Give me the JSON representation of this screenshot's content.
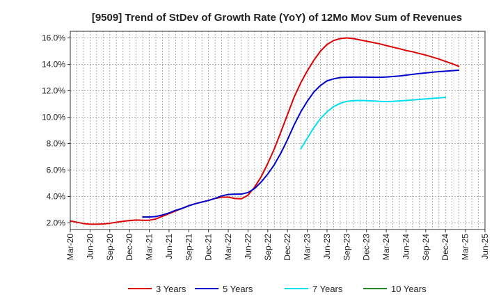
{
  "chart_data": {
    "type": "line",
    "title": "[9509]  Trend of StDev of Growth Rate (YoY) of 12Mo Mov Sum of Revenues",
    "xlabel": "",
    "ylabel": "",
    "x_categories": [
      "Mar-20",
      "Jun-20",
      "Sep-20",
      "Dec-20",
      "Mar-21",
      "Jun-21",
      "Sep-21",
      "Dec-21",
      "Mar-22",
      "Jun-22",
      "Sep-22",
      "Dec-22",
      "Mar-23",
      "Jun-23",
      "Sep-23",
      "Dec-23",
      "Mar-24",
      "Jun-24",
      "Sep-24",
      "Dec-24",
      "Mar-25",
      "Jun-25"
    ],
    "ylim": [
      1.5,
      16.5
    ],
    "yticks": [
      2.0,
      4.0,
      6.0,
      8.0,
      10.0,
      12.0,
      14.0,
      16.0
    ],
    "ytick_labels": [
      "2.0%",
      "4.0%",
      "6.0%",
      "8.0%",
      "10.0%",
      "12.0%",
      "14.0%",
      "16.0%"
    ],
    "grid": true,
    "legend_position": "bottom",
    "series": [
      {
        "name": "3 Years",
        "color": "#dd0000",
        "points": [
          [
            0,
            2.15
          ],
          [
            0.33,
            2.05
          ],
          [
            0.67,
            1.95
          ],
          [
            1,
            1.9
          ],
          [
            1.33,
            1.9
          ],
          [
            1.67,
            1.92
          ],
          [
            2,
            1.97
          ],
          [
            2.33,
            2.05
          ],
          [
            2.67,
            2.12
          ],
          [
            3,
            2.18
          ],
          [
            3.33,
            2.22
          ],
          [
            3.67,
            2.2
          ],
          [
            4,
            2.2
          ],
          [
            4.33,
            2.3
          ],
          [
            4.67,
            2.5
          ],
          [
            5,
            2.7
          ],
          [
            5.33,
            2.9
          ],
          [
            5.67,
            3.1
          ],
          [
            6,
            3.3
          ],
          [
            6.33,
            3.45
          ],
          [
            6.67,
            3.58
          ],
          [
            7,
            3.7
          ],
          [
            7.33,
            3.85
          ],
          [
            7.67,
            3.95
          ],
          [
            8,
            3.95
          ],
          [
            8.33,
            3.85
          ],
          [
            8.67,
            3.82
          ],
          [
            9,
            4.1
          ],
          [
            9.33,
            4.7
          ],
          [
            9.67,
            5.5
          ],
          [
            10,
            6.5
          ],
          [
            10.33,
            7.6
          ],
          [
            10.67,
            8.9
          ],
          [
            11,
            10.2
          ],
          [
            11.33,
            11.5
          ],
          [
            11.67,
            12.6
          ],
          [
            12,
            13.5
          ],
          [
            12.33,
            14.3
          ],
          [
            12.67,
            15.0
          ],
          [
            13,
            15.5
          ],
          [
            13.33,
            15.8
          ],
          [
            13.67,
            15.95
          ],
          [
            14,
            16.0
          ],
          [
            14.33,
            15.95
          ],
          [
            14.67,
            15.85
          ],
          [
            15,
            15.75
          ],
          [
            15.33,
            15.65
          ],
          [
            15.67,
            15.55
          ],
          [
            16,
            15.42
          ],
          [
            16.33,
            15.3
          ],
          [
            16.67,
            15.18
          ],
          [
            17,
            15.05
          ],
          [
            17.33,
            14.95
          ],
          [
            17.67,
            14.82
          ],
          [
            18,
            14.7
          ],
          [
            18.33,
            14.55
          ],
          [
            18.67,
            14.4
          ],
          [
            19,
            14.22
          ],
          [
            19.33,
            14.05
          ],
          [
            19.67,
            13.85
          ]
        ]
      },
      {
        "name": "5 Years",
        "color": "#0000cc",
        "points": [
          [
            3.67,
            2.45
          ],
          [
            4,
            2.45
          ],
          [
            4.33,
            2.48
          ],
          [
            4.67,
            2.6
          ],
          [
            5,
            2.75
          ],
          [
            5.33,
            2.95
          ],
          [
            5.67,
            3.1
          ],
          [
            6,
            3.3
          ],
          [
            6.33,
            3.45
          ],
          [
            6.67,
            3.58
          ],
          [
            7,
            3.7
          ],
          [
            7.33,
            3.85
          ],
          [
            7.67,
            4.05
          ],
          [
            8,
            4.15
          ],
          [
            8.33,
            4.18
          ],
          [
            8.67,
            4.18
          ],
          [
            9,
            4.3
          ],
          [
            9.33,
            4.6
          ],
          [
            9.67,
            5.1
          ],
          [
            10,
            5.7
          ],
          [
            10.33,
            6.4
          ],
          [
            10.67,
            7.3
          ],
          [
            11,
            8.3
          ],
          [
            11.33,
            9.4
          ],
          [
            11.67,
            10.4
          ],
          [
            12,
            11.2
          ],
          [
            12.33,
            11.9
          ],
          [
            12.67,
            12.4
          ],
          [
            13,
            12.75
          ],
          [
            13.33,
            12.9
          ],
          [
            13.67,
            13.0
          ],
          [
            14,
            13.02
          ],
          [
            14.33,
            13.03
          ],
          [
            14.67,
            13.03
          ],
          [
            15,
            13.03
          ],
          [
            15.33,
            13.02
          ],
          [
            15.67,
            13.02
          ],
          [
            16,
            13.04
          ],
          [
            16.33,
            13.08
          ],
          [
            16.67,
            13.12
          ],
          [
            17,
            13.18
          ],
          [
            17.33,
            13.24
          ],
          [
            17.67,
            13.3
          ],
          [
            18,
            13.35
          ],
          [
            18.33,
            13.4
          ],
          [
            18.67,
            13.45
          ],
          [
            19,
            13.48
          ],
          [
            19.33,
            13.52
          ],
          [
            19.67,
            13.55
          ]
        ]
      },
      {
        "name": "7 Years",
        "color": "#00e0f0",
        "points": [
          [
            11.67,
            7.6
          ],
          [
            12,
            8.4
          ],
          [
            12.33,
            9.2
          ],
          [
            12.67,
            9.9
          ],
          [
            13,
            10.4
          ],
          [
            13.33,
            10.8
          ],
          [
            13.67,
            11.05
          ],
          [
            14,
            11.2
          ],
          [
            14.33,
            11.25
          ],
          [
            14.67,
            11.26
          ],
          [
            15,
            11.25
          ],
          [
            15.33,
            11.23
          ],
          [
            15.67,
            11.2
          ],
          [
            16,
            11.18
          ],
          [
            16.33,
            11.2
          ],
          [
            16.67,
            11.23
          ],
          [
            17,
            11.26
          ],
          [
            17.33,
            11.3
          ],
          [
            17.67,
            11.34
          ],
          [
            18,
            11.38
          ],
          [
            18.33,
            11.42
          ],
          [
            18.67,
            11.46
          ],
          [
            19,
            11.5
          ]
        ]
      },
      {
        "name": "10 Years",
        "color": "#228b22",
        "points": []
      }
    ]
  }
}
